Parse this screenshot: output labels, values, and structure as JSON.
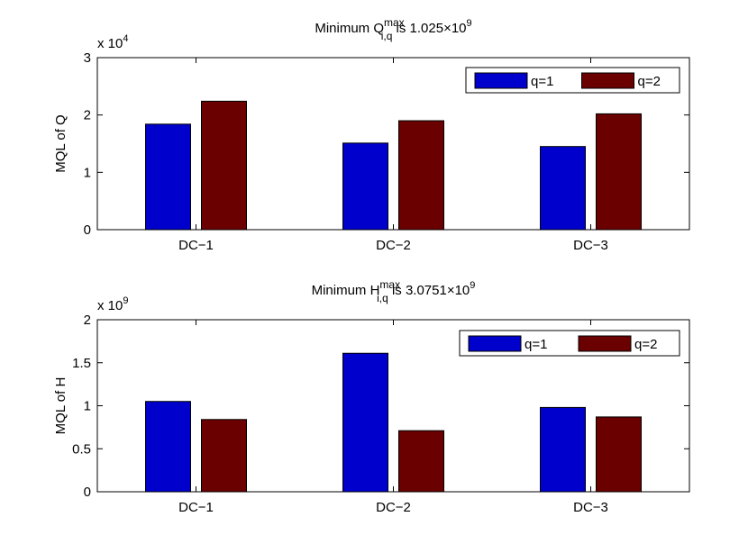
{
  "colors": {
    "q1": "#0000cc",
    "q2": "#6b0000",
    "axis": "#000000"
  },
  "chart_data": [
    {
      "type": "bar",
      "title": {
        "main": "Minimum Q",
        "sup": "max",
        "sub": "i,q",
        "tail": " is 1.025×10",
        "exp": "9"
      },
      "scale_label": {
        "base": "x 10",
        "exp": "4"
      },
      "ylabel": "MQL of Q",
      "ylim": [
        0,
        3
      ],
      "yticks": [
        0,
        1,
        2,
        3
      ],
      "ytick_labels": [
        "0",
        "1",
        "2",
        "3"
      ],
      "categories": [
        "DC−1",
        "DC−2",
        "DC−3"
      ],
      "series": [
        {
          "name": "q=1",
          "color": "#0000cc",
          "values": [
            1.84,
            1.51,
            1.45
          ]
        },
        {
          "name": "q=2",
          "color": "#6b0000",
          "values": [
            2.24,
            1.9,
            2.02
          ]
        }
      ],
      "legend": {
        "position": "top-right",
        "entries": [
          "q=1",
          "q=2"
        ]
      }
    },
    {
      "type": "bar",
      "title": {
        "main": "Minimum H",
        "sup": "max",
        "sub": "i,q",
        "tail": " is 3.0751×10",
        "exp": "9"
      },
      "scale_label": {
        "base": "x 10",
        "exp": "9"
      },
      "ylabel": "MQL of H",
      "ylim": [
        0,
        2
      ],
      "yticks": [
        0,
        0.5,
        1,
        1.5,
        2
      ],
      "ytick_labels": [
        "0",
        "0.5",
        "1",
        "1.5",
        "2"
      ],
      "categories": [
        "DC−1",
        "DC−2",
        "DC−3"
      ],
      "series": [
        {
          "name": "q=1",
          "color": "#0000cc",
          "values": [
            1.05,
            1.61,
            0.98
          ]
        },
        {
          "name": "q=2",
          "color": "#6b0000",
          "values": [
            0.84,
            0.71,
            0.87
          ]
        }
      ],
      "legend": {
        "position": "top-right",
        "entries": [
          "q=1",
          "q=2"
        ]
      }
    }
  ]
}
